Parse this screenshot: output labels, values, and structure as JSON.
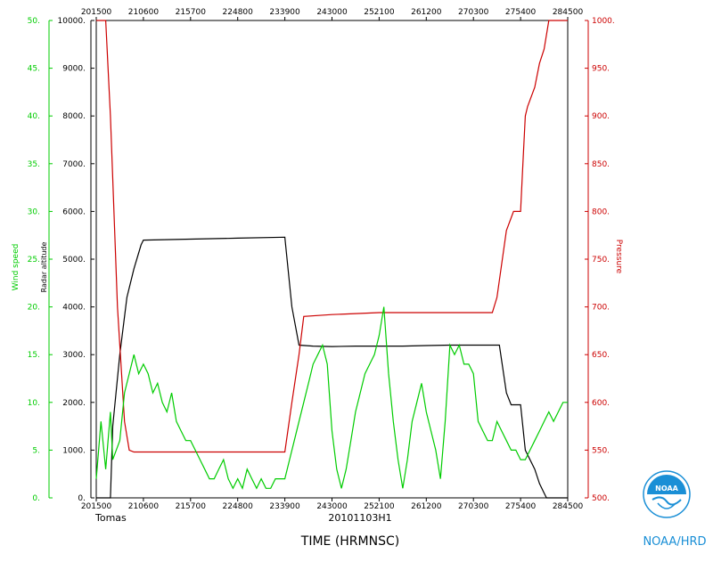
{
  "chart_data": {
    "type": "line",
    "axes": {
      "time": {
        "ticks": [
          "201500",
          "210600",
          "215700",
          "224800",
          "233900",
          "243000",
          "252100",
          "261200",
          "270300",
          "275400",
          "284500"
        ]
      },
      "wind": {
        "label": "Wind speed",
        "ticks": [
          "0.",
          "5.",
          "10.",
          "15.",
          "20.",
          "25.",
          "30.",
          "35.",
          "40.",
          "45.",
          "50."
        ],
        "range": [
          0,
          50
        ],
        "color": "#00cc00"
      },
      "altitude": {
        "label": "Radar altitude",
        "ticks": [
          "0.",
          "1000.",
          "2000.",
          "3000.",
          "4000.",
          "5000.",
          "6000.",
          "7000.",
          "8000.",
          "9000.",
          "10000."
        ],
        "range": [
          0,
          10000
        ],
        "color": "#000000"
      },
      "pressure": {
        "label": "Pressure",
        "ticks": [
          "500.",
          "550.",
          "600.",
          "650.",
          "700.",
          "750.",
          "800.",
          "850.",
          "900.",
          "950.",
          "1000."
        ],
        "range": [
          500,
          1000
        ],
        "color": "#cc0000"
      }
    },
    "xrange": [
      0,
      10
    ],
    "series": [
      {
        "name": "Radar altitude",
        "axis": "altitude",
        "color": "#000000",
        "points": [
          [
            0,
            0
          ],
          [
            0.3,
            0
          ],
          [
            0.35,
            1500
          ],
          [
            0.5,
            3000
          ],
          [
            0.65,
            4200
          ],
          [
            0.8,
            4800
          ],
          [
            0.95,
            5300
          ],
          [
            1.0,
            5400
          ],
          [
            2.0,
            5420
          ],
          [
            3.0,
            5440
          ],
          [
            4.0,
            5460
          ],
          [
            4.15,
            4000
          ],
          [
            4.3,
            3200
          ],
          [
            4.6,
            3180
          ],
          [
            5.0,
            3170
          ],
          [
            5.5,
            3180
          ],
          [
            6.0,
            3180
          ],
          [
            6.5,
            3180
          ],
          [
            7.0,
            3190
          ],
          [
            7.5,
            3200
          ],
          [
            8.0,
            3200
          ],
          [
            8.55,
            3200
          ],
          [
            8.7,
            2200
          ],
          [
            8.8,
            1950
          ],
          [
            9.0,
            1950
          ],
          [
            9.1,
            1000
          ],
          [
            9.3,
            600
          ],
          [
            9.4,
            300
          ],
          [
            9.5,
            100
          ],
          [
            9.55,
            0
          ],
          [
            10,
            0
          ]
        ]
      },
      {
        "name": "Pressure",
        "axis": "pressure",
        "color": "#cc0000",
        "points": [
          [
            0,
            1000
          ],
          [
            0.2,
            1000
          ],
          [
            0.3,
            900
          ],
          [
            0.45,
            700
          ],
          [
            0.6,
            580
          ],
          [
            0.7,
            550
          ],
          [
            0.8,
            548
          ],
          [
            2.0,
            548
          ],
          [
            3.0,
            548
          ],
          [
            4.0,
            548
          ],
          [
            4.15,
            600
          ],
          [
            4.3,
            650
          ],
          [
            4.4,
            690
          ],
          [
            5.0,
            692
          ],
          [
            5.5,
            693
          ],
          [
            6.0,
            694
          ],
          [
            6.5,
            694
          ],
          [
            7.0,
            694
          ],
          [
            7.5,
            694
          ],
          [
            8.0,
            694
          ],
          [
            8.4,
            694
          ],
          [
            8.5,
            710
          ],
          [
            8.7,
            780
          ],
          [
            8.85,
            800
          ],
          [
            9.0,
            800
          ],
          [
            9.05,
            850
          ],
          [
            9.1,
            900
          ],
          [
            9.15,
            910
          ],
          [
            9.3,
            930
          ],
          [
            9.4,
            955
          ],
          [
            9.5,
            970
          ],
          [
            9.6,
            1000
          ],
          [
            10,
            1000
          ]
        ]
      },
      {
        "name": "Wind speed",
        "axis": "wind",
        "color": "#00cc00",
        "points": [
          [
            0,
            2
          ],
          [
            0.1,
            8
          ],
          [
            0.2,
            3
          ],
          [
            0.3,
            9
          ],
          [
            0.35,
            4
          ],
          [
            0.5,
            6
          ],
          [
            0.6,
            11
          ],
          [
            0.7,
            13
          ],
          [
            0.8,
            15
          ],
          [
            0.9,
            13
          ],
          [
            1.0,
            14
          ],
          [
            1.1,
            13
          ],
          [
            1.2,
            11
          ],
          [
            1.3,
            12
          ],
          [
            1.4,
            10
          ],
          [
            1.5,
            9
          ],
          [
            1.6,
            11
          ],
          [
            1.7,
            8
          ],
          [
            1.8,
            7
          ],
          [
            1.9,
            6
          ],
          [
            2.0,
            6
          ],
          [
            2.1,
            5
          ],
          [
            2.2,
            4
          ],
          [
            2.3,
            3
          ],
          [
            2.4,
            2
          ],
          [
            2.5,
            2
          ],
          [
            2.6,
            3
          ],
          [
            2.7,
            4
          ],
          [
            2.8,
            2
          ],
          [
            2.9,
            1
          ],
          [
            3.0,
            2
          ],
          [
            3.1,
            1
          ],
          [
            3.2,
            3
          ],
          [
            3.3,
            2
          ],
          [
            3.4,
            1
          ],
          [
            3.5,
            2
          ],
          [
            3.6,
            1
          ],
          [
            3.7,
            1
          ],
          [
            3.8,
            2
          ],
          [
            3.9,
            2
          ],
          [
            4.0,
            2
          ],
          [
            4.1,
            4
          ],
          [
            4.2,
            6
          ],
          [
            4.3,
            8
          ],
          [
            4.4,
            10
          ],
          [
            4.5,
            12
          ],
          [
            4.6,
            14
          ],
          [
            4.7,
            15
          ],
          [
            4.8,
            16
          ],
          [
            4.9,
            14
          ],
          [
            5.0,
            7
          ],
          [
            5.1,
            3
          ],
          [
            5.2,
            1
          ],
          [
            5.3,
            3
          ],
          [
            5.4,
            6
          ],
          [
            5.5,
            9
          ],
          [
            5.6,
            11
          ],
          [
            5.7,
            13
          ],
          [
            5.8,
            14
          ],
          [
            5.9,
            15
          ],
          [
            6.0,
            17
          ],
          [
            6.1,
            20
          ],
          [
            6.2,
            13
          ],
          [
            6.3,
            8
          ],
          [
            6.4,
            4
          ],
          [
            6.5,
            1
          ],
          [
            6.6,
            4
          ],
          [
            6.7,
            8
          ],
          [
            6.8,
            10
          ],
          [
            6.9,
            12
          ],
          [
            7.0,
            9
          ],
          [
            7.1,
            7
          ],
          [
            7.2,
            5
          ],
          [
            7.3,
            2
          ],
          [
            7.4,
            8
          ],
          [
            7.5,
            16
          ],
          [
            7.6,
            15
          ],
          [
            7.7,
            16
          ],
          [
            7.8,
            14
          ],
          [
            7.9,
            14
          ],
          [
            8.0,
            13
          ],
          [
            8.1,
            8
          ],
          [
            8.2,
            7
          ],
          [
            8.3,
            6
          ],
          [
            8.4,
            6
          ],
          [
            8.5,
            8
          ],
          [
            8.6,
            7
          ],
          [
            8.7,
            6
          ],
          [
            8.8,
            5
          ],
          [
            8.9,
            5
          ],
          [
            9.0,
            4
          ],
          [
            9.1,
            4
          ],
          [
            9.2,
            5
          ],
          [
            9.3,
            6
          ],
          [
            9.4,
            7
          ],
          [
            9.5,
            8
          ],
          [
            9.6,
            9
          ],
          [
            9.7,
            8
          ],
          [
            9.8,
            9
          ],
          [
            9.9,
            10
          ],
          [
            10,
            10
          ]
        ]
      }
    ]
  },
  "labels": {
    "storm": "Tomas",
    "flight": "20101103H1",
    "xaxis": "TIME (HRMNSC)",
    "credit": "NOAA/HRD",
    "logo_text": "NOAA"
  }
}
